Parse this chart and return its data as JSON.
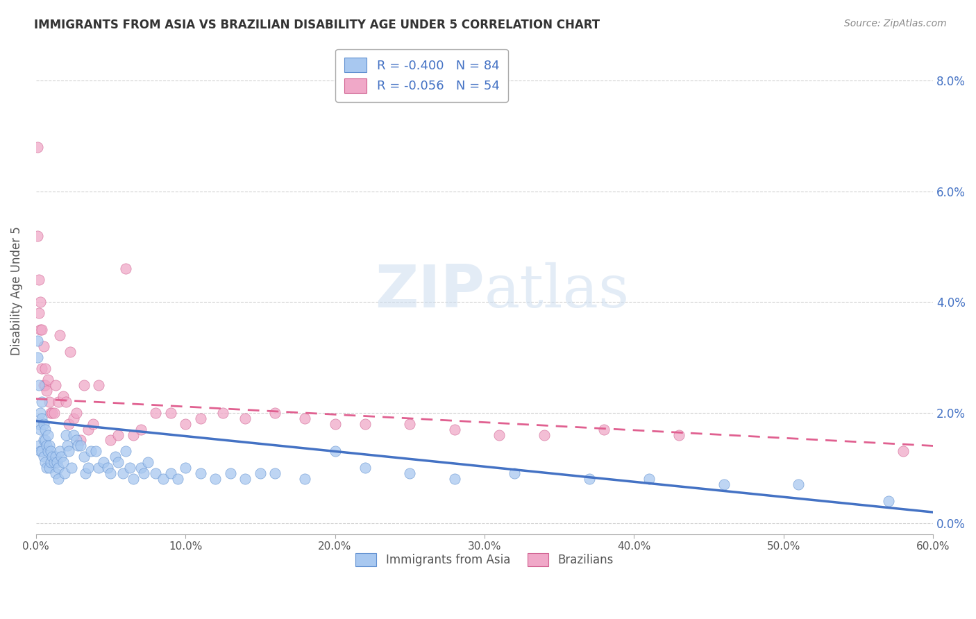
{
  "title": "IMMIGRANTS FROM ASIA VS BRAZILIAN DISABILITY AGE UNDER 5 CORRELATION CHART",
  "source": "Source: ZipAtlas.com",
  "ylabel": "Disability Age Under 5",
  "legend_label1": "Immigrants from Asia",
  "legend_label2": "Brazilians",
  "legend_r1": "R = -0.400",
  "legend_n1": "N = 84",
  "legend_r2": "R = -0.056",
  "legend_n2": "N = 54",
  "color_asia": "#a8c8f0",
  "color_brazil": "#f0a8c8",
  "color_asia_edge": "#6090d0",
  "color_brazil_edge": "#d06090",
  "color_asia_line": "#4472c4",
  "color_brazil_line": "#e06090",
  "background": "#ffffff",
  "grid_color": "#cccccc",
  "x_min": 0.0,
  "x_max": 0.6,
  "y_min": -0.002,
  "y_max": 0.086,
  "asia_x": [
    0.001,
    0.001,
    0.002,
    0.002,
    0.002,
    0.003,
    0.003,
    0.003,
    0.004,
    0.004,
    0.004,
    0.005,
    0.005,
    0.005,
    0.006,
    0.006,
    0.006,
    0.007,
    0.007,
    0.008,
    0.008,
    0.009,
    0.009,
    0.01,
    0.01,
    0.011,
    0.012,
    0.013,
    0.013,
    0.014,
    0.015,
    0.015,
    0.016,
    0.017,
    0.018,
    0.019,
    0.02,
    0.021,
    0.022,
    0.024,
    0.025,
    0.027,
    0.028,
    0.03,
    0.032,
    0.033,
    0.035,
    0.037,
    0.04,
    0.042,
    0.045,
    0.048,
    0.05,
    0.053,
    0.055,
    0.058,
    0.06,
    0.063,
    0.065,
    0.07,
    0.072,
    0.075,
    0.08,
    0.085,
    0.09,
    0.095,
    0.1,
    0.11,
    0.12,
    0.13,
    0.14,
    0.15,
    0.16,
    0.18,
    0.2,
    0.22,
    0.25,
    0.28,
    0.32,
    0.37,
    0.41,
    0.46,
    0.51,
    0.57
  ],
  "asia_y": [
    0.03,
    0.033,
    0.025,
    0.018,
    0.014,
    0.02,
    0.017,
    0.013,
    0.022,
    0.019,
    0.013,
    0.018,
    0.015,
    0.012,
    0.017,
    0.015,
    0.011,
    0.014,
    0.01,
    0.016,
    0.013,
    0.014,
    0.01,
    0.013,
    0.011,
    0.012,
    0.011,
    0.012,
    0.009,
    0.011,
    0.01,
    0.008,
    0.013,
    0.012,
    0.011,
    0.009,
    0.016,
    0.014,
    0.013,
    0.01,
    0.016,
    0.015,
    0.014,
    0.014,
    0.012,
    0.009,
    0.01,
    0.013,
    0.013,
    0.01,
    0.011,
    0.01,
    0.009,
    0.012,
    0.011,
    0.009,
    0.013,
    0.01,
    0.008,
    0.01,
    0.009,
    0.011,
    0.009,
    0.008,
    0.009,
    0.008,
    0.01,
    0.009,
    0.008,
    0.009,
    0.008,
    0.009,
    0.009,
    0.008,
    0.013,
    0.01,
    0.009,
    0.008,
    0.009,
    0.008,
    0.008,
    0.007,
    0.007,
    0.004
  ],
  "brazil_x": [
    0.001,
    0.001,
    0.002,
    0.002,
    0.003,
    0.003,
    0.004,
    0.004,
    0.005,
    0.005,
    0.006,
    0.006,
    0.007,
    0.008,
    0.009,
    0.01,
    0.011,
    0.012,
    0.013,
    0.015,
    0.016,
    0.018,
    0.02,
    0.022,
    0.023,
    0.025,
    0.027,
    0.03,
    0.032,
    0.035,
    0.038,
    0.042,
    0.05,
    0.055,
    0.06,
    0.065,
    0.07,
    0.08,
    0.09,
    0.1,
    0.11,
    0.125,
    0.14,
    0.16,
    0.18,
    0.2,
    0.22,
    0.25,
    0.28,
    0.31,
    0.34,
    0.38,
    0.43,
    0.58
  ],
  "brazil_y": [
    0.068,
    0.052,
    0.044,
    0.038,
    0.04,
    0.035,
    0.035,
    0.028,
    0.032,
    0.025,
    0.025,
    0.028,
    0.024,
    0.026,
    0.022,
    0.02,
    0.02,
    0.02,
    0.025,
    0.022,
    0.034,
    0.023,
    0.022,
    0.018,
    0.031,
    0.019,
    0.02,
    0.015,
    0.025,
    0.017,
    0.018,
    0.025,
    0.015,
    0.016,
    0.046,
    0.016,
    0.017,
    0.02,
    0.02,
    0.018,
    0.019,
    0.02,
    0.019,
    0.02,
    0.019,
    0.018,
    0.018,
    0.018,
    0.017,
    0.016,
    0.016,
    0.017,
    0.016,
    0.013
  ],
  "asia_trend_x0": 0.0,
  "asia_trend_y0": 0.0185,
  "asia_trend_x1": 0.6,
  "asia_trend_y1": 0.002,
  "brazil_trend_x0": 0.0,
  "brazil_trend_y0": 0.0225,
  "brazil_trend_x1": 0.6,
  "brazil_trend_y1": 0.014
}
